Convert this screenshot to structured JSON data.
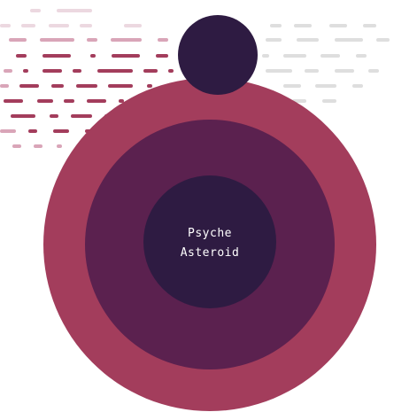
{
  "diagram": {
    "label_line1": "Psyche",
    "label_line2": "Asteroid"
  },
  "colors": {
    "background": "#ffffff",
    "outer_ring": "#a33d5c",
    "middle_ring": "#5b214f",
    "core": "#2e1b42",
    "moon": "#2e1b42",
    "dash_dark": "#a33d5c",
    "dash_mid": "#d9a5b8",
    "dash_light": "#ecd8e0",
    "dash_gray": "#dedede"
  }
}
